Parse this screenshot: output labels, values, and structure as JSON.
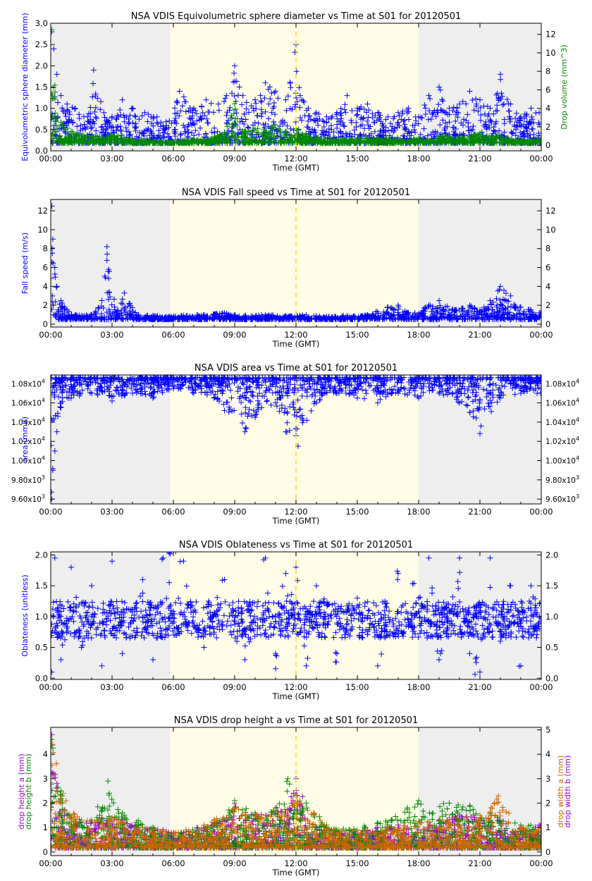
{
  "colors": {
    "night": "#eeeeee",
    "day": "#fffde6",
    "noon_line": "#ffcc00",
    "axis": "#000000",
    "blue": "#0000ff",
    "green": "#008800",
    "orange": "#cc6600",
    "purple": "#9900cc"
  },
  "chart_data": [
    {
      "type": "scatter",
      "title": "NSA VDIS Equivolumetric sphere diameter vs Time at S01 for 20120501",
      "xlabel": "Time (GMT)",
      "x_ticks": [
        "00:00",
        "03:00",
        "06:00",
        "09:00",
        "12:00",
        "15:00",
        "18:00",
        "21:00",
        "00:00"
      ],
      "xlim_hours": [
        0,
        24
      ],
      "day_shading_hours": [
        5.85,
        18.0
      ],
      "noon_line_hour": 12.0,
      "grid": false,
      "ylabel_left": [
        {
          "text": "Equivolumetric sphere diameter (mm)",
          "color": "blue"
        }
      ],
      "ylabel_right": [
        {
          "text": "Drop volume (mm^3)",
          "color": "green"
        }
      ],
      "ylim_left": [
        0,
        3.0
      ],
      "yticks_left": [
        "0.0",
        "0.5",
        "1.0",
        "1.5",
        "2.0",
        "2.5",
        "3.0"
      ],
      "ylim_right": [
        -0.6,
        13.2
      ],
      "yticks_right": [
        "0",
        "2",
        "4",
        "6",
        "8",
        "10",
        "12"
      ],
      "series": [
        {
          "axis": "left",
          "color": "blue",
          "marker": "+",
          "x": [
            0.05,
            0.15,
            0.3,
            0.5,
            0.8,
            1.2,
            1.8,
            2.1,
            2.6,
            3.0,
            3.5,
            4.0,
            4.6,
            5.2,
            5.8,
            6.3,
            7.0,
            7.6,
            8.2,
            8.6,
            9.0,
            9.4,
            10.0,
            10.5,
            11.0,
            11.5,
            12.0,
            12.2,
            12.6,
            13.0,
            13.5,
            14.0,
            14.5,
            15.0,
            15.5,
            16.0,
            16.5,
            17.0,
            17.5,
            18.0,
            18.5,
            19.0,
            19.5,
            20.0,
            20.5,
            21.0,
            21.5,
            22.0,
            22.5,
            23.0,
            23.5,
            23.9
          ],
          "y": [
            2.8,
            2.4,
            1.8,
            1.3,
            1.1,
            1.0,
            0.8,
            1.9,
            0.9,
            0.8,
            1.2,
            1.0,
            0.9,
            0.8,
            0.7,
            1.4,
            1.0,
            1.2,
            1.1,
            1.3,
            2.0,
            1.3,
            1.2,
            1.6,
            1.4,
            1.2,
            2.5,
            1.3,
            1.0,
            0.9,
            0.8,
            0.9,
            1.3,
            1.0,
            1.1,
            0.9,
            0.8,
            0.9,
            1.0,
            0.8,
            1.3,
            1.5,
            1.0,
            1.1,
            1.4,
            1.2,
            1.0,
            1.8,
            1.1,
            0.8,
            1.0,
            0.9
          ]
        },
        {
          "axis": "right",
          "color": "green",
          "marker": "+",
          "x": [
            0.05,
            0.2,
            0.5,
            1.0,
            2.0,
            3.0,
            4.0,
            5.0,
            6.0,
            7.0,
            8.0,
            8.5,
            9.0,
            9.5,
            10.0,
            11.0,
            11.5,
            12.0,
            12.5,
            13.0,
            14.0,
            15.0,
            16.0,
            17.0,
            18.0,
            19.0,
            20.0,
            21.0,
            22.0,
            23.0,
            23.9
          ],
          "y": [
            12.5,
            6.5,
            2.5,
            1.5,
            1.0,
            1.2,
            0.6,
            0.5,
            0.3,
            0.6,
            0.9,
            1.4,
            4.5,
            1.5,
            1.8,
            2.2,
            1.5,
            1.8,
            1.0,
            0.8,
            0.6,
            0.7,
            0.8,
            0.6,
            0.7,
            1.0,
            0.9,
            1.3,
            1.0,
            0.6,
            0.7
          ]
        }
      ]
    },
    {
      "type": "scatter",
      "title": "NSA VDIS Fall speed vs Time at S01 for 20120501",
      "xlabel": "Time (GMT)",
      "x_ticks": [
        "00:00",
        "03:00",
        "06:00",
        "09:00",
        "12:00",
        "15:00",
        "18:00",
        "21:00",
        "00:00"
      ],
      "xlim_hours": [
        0,
        24
      ],
      "day_shading_hours": [
        5.85,
        18.0
      ],
      "noon_line_hour": 12.0,
      "grid": false,
      "ylabel_left": [
        {
          "text": "Fall speed (m/s)",
          "color": "blue"
        }
      ],
      "ylabel_right": [],
      "ylim_left": [
        -0.3,
        13.2
      ],
      "yticks_left": [
        "0",
        "2",
        "4",
        "6",
        "8",
        "10",
        "12"
      ],
      "ylim_right": [
        -0.3,
        13.2
      ],
      "yticks_right": [
        "0",
        "2",
        "4",
        "6",
        "8",
        "10",
        "12"
      ],
      "series": [
        {
          "axis": "left",
          "color": "blue",
          "marker": "+",
          "x": [
            0.05,
            0.1,
            0.2,
            0.3,
            0.5,
            0.8,
            1.2,
            2.0,
            2.5,
            2.75,
            3.2,
            3.6,
            4.2,
            5.0,
            5.8,
            6.5,
            7.5,
            8.5,
            9.5,
            10.5,
            11.5,
            12.5,
            13.5,
            14.5,
            15.5,
            16.5,
            17.0,
            17.5,
            18.5,
            19.0,
            19.8,
            20.5,
            21.0,
            21.5,
            22.0,
            22.5,
            23.0,
            23.5,
            23.9
          ],
          "y": [
            12.5,
            9.0,
            6.0,
            4.0,
            2.5,
            1.5,
            1.0,
            1.0,
            2.5,
            8.2,
            1.2,
            3.3,
            1.0,
            0.9,
            0.8,
            0.9,
            1.0,
            1.2,
            0.9,
            1.0,
            0.9,
            1.0,
            0.8,
            0.9,
            1.0,
            1.8,
            2.0,
            1.2,
            2.0,
            2.5,
            1.5,
            2.0,
            1.5,
            2.5,
            4.0,
            3.0,
            1.8,
            1.5,
            1.2
          ]
        }
      ]
    },
    {
      "type": "scatter",
      "title": "NSA VDIS area vs Time at S01 for 20120501",
      "xlabel": "Time (GMT)",
      "x_ticks": [
        "00:00",
        "03:00",
        "06:00",
        "09:00",
        "12:00",
        "15:00",
        "18:00",
        "21:00",
        "00:00"
      ],
      "xlim_hours": [
        0,
        24
      ],
      "day_shading_hours": [
        5.85,
        18.0
      ],
      "noon_line_hour": 12.0,
      "grid": false,
      "ylabel_left": [
        {
          "text": "area (mm2)",
          "color": "blue"
        }
      ],
      "ylabel_right": [],
      "ylim_left": [
        9550,
        10890
      ],
      "ytick_values": [
        9600,
        9800,
        10000,
        10200,
        10400,
        10600,
        10800
      ],
      "yticks_left": [
        {
          "mant": "9.60x10",
          "exp": "3"
        },
        {
          "mant": "9.80x10",
          "exp": "3"
        },
        {
          "mant": "1.00x10",
          "exp": "4"
        },
        {
          "mant": "1.02x10",
          "exp": "4"
        },
        {
          "mant": "1.04x10",
          "exp": "4"
        },
        {
          "mant": "1.06x10",
          "exp": "4"
        },
        {
          "mant": "1.08x10",
          "exp": "4"
        }
      ],
      "series": [
        {
          "axis": "left",
          "color": "blue",
          "marker": "+",
          "x": [
            0.05,
            0.1,
            0.2,
            0.3,
            0.5,
            1.0,
            2.0,
            3.0,
            4.0,
            5.0,
            6.0,
            7.0,
            8.0,
            8.5,
            9.5,
            10.0,
            11.0,
            11.5,
            12.0,
            12.1,
            13.0,
            14.0,
            15.0,
            16.0,
            17.0,
            18.0,
            19.0,
            20.0,
            20.5,
            21.0,
            22.0,
            23.0,
            23.8
          ],
          "y": [
            9600,
            9900,
            10100,
            10300,
            10550,
            10650,
            10700,
            10620,
            10700,
            10650,
            10750,
            10700,
            10650,
            10520,
            10300,
            10450,
            10600,
            10300,
            10260,
            10150,
            10600,
            10700,
            10650,
            10600,
            10700,
            10650,
            10700,
            10600,
            10500,
            10280,
            10650,
            10700,
            10700
          ]
        }
      ]
    },
    {
      "type": "scatter",
      "title": "NSA VDIS Oblateness vs Time at S01 for 20120501",
      "xlabel": "Time (GMT)",
      "x_ticks": [
        "00:00",
        "03:00",
        "06:00",
        "09:00",
        "12:00",
        "15:00",
        "18:00",
        "21:00",
        "00:00"
      ],
      "xlim_hours": [
        0,
        24
      ],
      "day_shading_hours": [
        5.85,
        18.0
      ],
      "noon_line_hour": 12.0,
      "grid": false,
      "ylabel_left": [
        {
          "text": "Oblateness (unitless)",
          "color": "blue"
        }
      ],
      "ylabel_right": [],
      "ylim_left": [
        -0.02,
        2.05
      ],
      "yticks_left": [
        "0.0",
        "0.5",
        "1.0",
        "1.5",
        "2.0"
      ],
      "ylim_right": [
        -0.02,
        2.05
      ],
      "yticks_right": [
        "0.0",
        "0.5",
        "1.0",
        "1.5",
        "2.0"
      ],
      "series": [
        {
          "axis": "left",
          "color": "blue",
          "marker": "+",
          "x": [
            0.05,
            0.2,
            0.5,
            1.0,
            1.5,
            2.0,
            2.5,
            3.0,
            3.5,
            4.5,
            5.0,
            5.5,
            6.5,
            7.5,
            8.5,
            9.5,
            10.5,
            11.0,
            11.5,
            12.0,
            12.5,
            13.0,
            14.0,
            15.0,
            16.0,
            17.0,
            18.0,
            18.5,
            19.0,
            20.0,
            20.5,
            21.0,
            21.5,
            22.0,
            22.5,
            23.0,
            23.5,
            23.9
          ],
          "y": [
            0.1,
            1.95,
            0.3,
            1.8,
            0.5,
            1.5,
            0.2,
            1.9,
            0.4,
            1.6,
            0.3,
            1.95,
            1.9,
            0.5,
            1.6,
            0.3,
            1.95,
            0.4,
            1.7,
            1.8,
            0.2,
            1.5,
            0.4,
            1.3,
            0.2,
            1.7,
            1.3,
            1.95,
            0.3,
            1.95,
            0.4,
            0.1,
            1.95,
            0.6,
            1.5,
            0.2,
            1.5,
            0.8
          ]
        }
      ]
    },
    {
      "type": "scatter",
      "title": "NSA VDIS drop height a vs Time at S01 for 20120501",
      "xlabel": "Time (GMT)",
      "x_ticks": [
        "00:00",
        "03:00",
        "06:00",
        "09:00",
        "12:00",
        "15:00",
        "18:00",
        "21:00",
        "00:00"
      ],
      "xlim_hours": [
        0,
        24
      ],
      "day_shading_hours": [
        5.85,
        18.0
      ],
      "noon_line_hour": 12.0,
      "grid": false,
      "ylabel_left": [
        {
          "text": "drop height a (mm)",
          "color": "purple"
        },
        {
          "text": "drop height b (mm)",
          "color": "green"
        }
      ],
      "ylabel_right": [
        {
          "text": "drop width a (mm)",
          "color": "orange"
        },
        {
          "text": "drop width b (mm)",
          "color": "purple"
        }
      ],
      "ylim_left": [
        -0.15,
        5.1
      ],
      "yticks_left": [
        "0",
        "1",
        "2",
        "3",
        "4"
      ],
      "ylim_right": [
        -0.15,
        5.1
      ],
      "yticks_right": [
        "0",
        "1",
        "2",
        "3",
        "4",
        "5"
      ],
      "series": [
        {
          "axis": "left",
          "color": "purple",
          "marker": "+",
          "x": [
            0.05,
            0.3,
            0.8,
            1.5,
            2.5,
            3.5,
            4.5,
            5.5,
            6.5,
            7.5,
            8.5,
            9.0,
            10.0,
            11.0,
            11.5,
            12.0,
            12.5,
            13.0,
            14.0,
            15.0,
            16.0,
            17.0,
            18.0,
            19.0,
            20.0,
            21.0,
            22.0,
            23.0,
            23.9
          ],
          "y": [
            4.8,
            2.8,
            1.5,
            1.2,
            1.4,
            1.3,
            1.0,
            0.9,
            0.8,
            1.1,
            1.3,
            2.0,
            1.5,
            1.8,
            1.6,
            3.0,
            2.0,
            1.0,
            0.8,
            0.9,
            1.0,
            1.1,
            0.9,
            1.3,
            1.5,
            1.4,
            1.3,
            1.0,
            1.1
          ]
        },
        {
          "axis": "left",
          "color": "green",
          "marker": "+",
          "x": [
            0.05,
            0.5,
            1.0,
            2.0,
            2.8,
            3.5,
            5.0,
            6.0,
            8.0,
            9.0,
            10.0,
            11.0,
            11.6,
            12.5,
            14.0,
            16.0,
            18.0,
            19.5,
            20.5,
            21.5,
            23.0
          ],
          "y": [
            4.6,
            2.5,
            1.4,
            1.3,
            2.9,
            1.6,
            1.0,
            0.7,
            1.2,
            2.1,
            1.6,
            1.7,
            3.0,
            2.0,
            0.9,
            1.2,
            2.1,
            2.0,
            1.9,
            1.6,
            1.1
          ]
        },
        {
          "axis": "right",
          "color": "orange",
          "marker": "+",
          "x": [
            0.1,
            0.6,
            1.5,
            3.0,
            4.5,
            6.0,
            7.5,
            9.0,
            10.5,
            12.0,
            13.5,
            15.0,
            16.5,
            18.0,
            19.5,
            21.0,
            21.9,
            23.0
          ],
          "y": [
            4.4,
            2.4,
            1.3,
            1.4,
            1.0,
            0.8,
            1.1,
            1.8,
            1.5,
            2.3,
            1.1,
            0.9,
            1.0,
            1.2,
            1.4,
            1.5,
            2.3,
            1.0
          ]
        }
      ]
    }
  ]
}
